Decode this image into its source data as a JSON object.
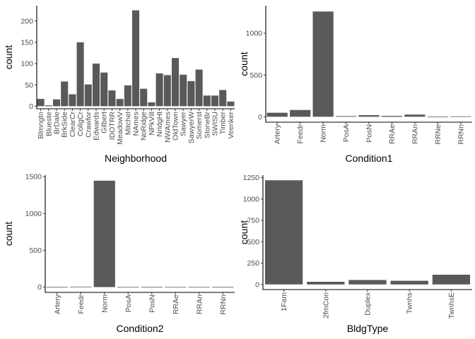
{
  "chart_data": [
    {
      "type": "bar",
      "xlabel": "Neighborhood",
      "ylabel": "count",
      "categories": [
        "Blmngtn",
        "Blueste",
        "BrDale",
        "BrkSide",
        "ClearCr",
        "CollgCr",
        "Crawfor",
        "Edwards",
        "Gilbert",
        "IDOTRR",
        "MeadowV",
        "Mitchel",
        "NAmes",
        "NoRidge",
        "NPkVill",
        "NridgHt",
        "NWAmes",
        "OldTown",
        "Sawyer",
        "SawyerW",
        "Somerst",
        "StoneBr",
        "SWISU",
        "Timber",
        "Veenker"
      ],
      "values": [
        17,
        2,
        16,
        58,
        28,
        150,
        51,
        100,
        79,
        37,
        17,
        49,
        225,
        41,
        9,
        77,
        73,
        113,
        74,
        59,
        86,
        25,
        25,
        38,
        11
      ],
      "ylim": [
        -6,
        236
      ],
      "yticks": [
        0,
        50,
        100,
        150,
        200
      ],
      "bar_color": "#595959"
    },
    {
      "type": "bar",
      "xlabel": "Condition1",
      "ylabel": "count",
      "categories": [
        "Artery",
        "Feedr",
        "Norm",
        "PosA",
        "PosN",
        "RRAe",
        "RRAn",
        "RRNe",
        "RRNn"
      ],
      "values": [
        48,
        81,
        1260,
        8,
        19,
        11,
        26,
        2,
        5
      ],
      "ylim": [
        -65,
        1330
      ],
      "yticks": [
        0,
        500,
        1000
      ],
      "bar_color": "#595959"
    },
    {
      "type": "bar",
      "xlabel": "Condition2",
      "ylabel": "count",
      "categories": [
        "Artery",
        "Feedr",
        "Norm",
        "PosA",
        "PosN",
        "RRAe",
        "RRAn",
        "RRNn"
      ],
      "values": [
        2,
        6,
        1445,
        1,
        2,
        1,
        1,
        2
      ],
      "ylim": [
        -72,
        1520
      ],
      "yticks": [
        0,
        500,
        1000,
        1500
      ],
      "bar_color": "#595959"
    },
    {
      "type": "bar",
      "xlabel": "BldgType",
      "ylabel": "count",
      "categories": [
        "1Fam",
        "2fmCon",
        "Duplex",
        "Twnhs",
        "TwnhsE"
      ],
      "values": [
        1220,
        31,
        52,
        43,
        114
      ],
      "ylim": [
        -60,
        1280
      ],
      "yticks": [
        0,
        250,
        500,
        750,
        1000,
        1250
      ],
      "bar_color": "#595959"
    }
  ]
}
